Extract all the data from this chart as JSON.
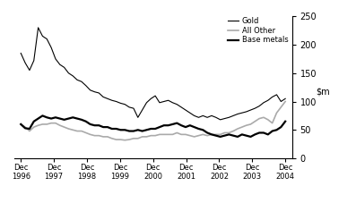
{
  "ylim": [
    0,
    250
  ],
  "yticks": [
    0,
    50,
    100,
    150,
    200,
    250
  ],
  "x_labels": [
    "Dec\n1996",
    "Dec\n1997",
    "Dec\n1998",
    "Dec\n1999",
    "Dec\n2000",
    "Dec\n2001",
    "Dec\n2002",
    "Dec\n2003",
    "Dec\n2004"
  ],
  "legend_labels": [
    "Base metals",
    "Gold",
    "All Other"
  ],
  "base_metals_color": "#000000",
  "gold_color": "#000000",
  "all_other_color": "#aaaaaa",
  "base_metals_lw": 1.6,
  "gold_lw": 0.8,
  "all_other_lw": 1.2,
  "gold": [
    185,
    168,
    155,
    172,
    230,
    215,
    210,
    195,
    175,
    165,
    160,
    150,
    145,
    138,
    135,
    128,
    120,
    117,
    115,
    108,
    105,
    102,
    100,
    97,
    95,
    90,
    88,
    72,
    85,
    98,
    105,
    110,
    98,
    100,
    102,
    98,
    95,
    90,
    85,
    80,
    75,
    72,
    75,
    72,
    75,
    72,
    68,
    70,
    72,
    75,
    78,
    80,
    82,
    85,
    88,
    92,
    98,
    102,
    108,
    112,
    100,
    105
  ],
  "base_metals": [
    60,
    53,
    52,
    65,
    70,
    75,
    72,
    70,
    72,
    70,
    68,
    70,
    72,
    70,
    68,
    65,
    60,
    58,
    58,
    55,
    55,
    52,
    52,
    50,
    50,
    48,
    48,
    50,
    48,
    50,
    52,
    52,
    55,
    58,
    58,
    60,
    62,
    58,
    55,
    58,
    55,
    52,
    50,
    45,
    42,
    40,
    38,
    40,
    42,
    40,
    38,
    42,
    40,
    38,
    42,
    45,
    45,
    42,
    48,
    50,
    55,
    65
  ],
  "all_other": [
    60,
    55,
    48,
    55,
    58,
    60,
    60,
    62,
    62,
    58,
    55,
    52,
    50,
    48,
    48,
    45,
    42,
    40,
    40,
    38,
    38,
    35,
    33,
    33,
    32,
    33,
    35,
    35,
    38,
    38,
    40,
    40,
    42,
    42,
    42,
    42,
    45,
    42,
    42,
    40,
    38,
    40,
    42,
    40,
    42,
    42,
    42,
    45,
    45,
    48,
    52,
    55,
    58,
    60,
    65,
    70,
    72,
    68,
    62,
    80,
    90,
    100
  ]
}
